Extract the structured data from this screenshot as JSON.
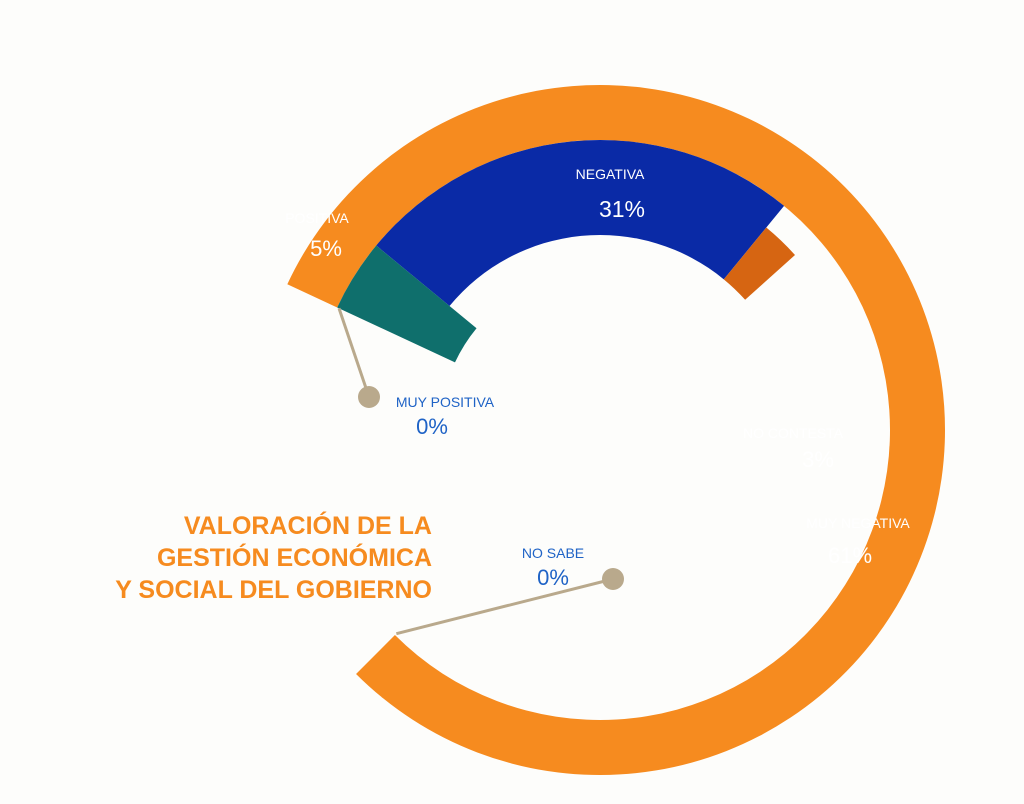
{
  "chart_data": {
    "type": "pie",
    "title_lines": [
      "VALORACIÓN DE LA",
      "GESTIÓN ECONÓMICA",
      "Y SOCIAL DEL GOBIERNO"
    ],
    "slices": [
      {
        "key": "muy_positiva",
        "label": "MUY POSITIVA",
        "value": 0,
        "value_label": "0%",
        "color": "#b9a98c"
      },
      {
        "key": "positiva",
        "label": "POSITIVA",
        "value": 5,
        "value_label": "5%",
        "color": "#0f6f6c"
      },
      {
        "key": "negativa",
        "label": "NEGATIVA",
        "value": 31,
        "value_label": "31%",
        "color": "#0a2aa6"
      },
      {
        "key": "no_contesta",
        "label": "NO CONTESTA",
        "value": 3,
        "value_label": "3%",
        "color": "#d66512"
      },
      {
        "key": "muy_negativa",
        "label": "MUY NEGATIVA",
        "value": 61,
        "value_label": "61%",
        "color": "#f68b1f"
      },
      {
        "key": "no_sabe",
        "label": "NO SABE",
        "value": 0,
        "value_label": "0%",
        "color": "#b9a98c"
      }
    ],
    "text_colors": {
      "inside": "#ffffff",
      "outside": "#1f63c6",
      "title": "#f68b1f"
    }
  }
}
